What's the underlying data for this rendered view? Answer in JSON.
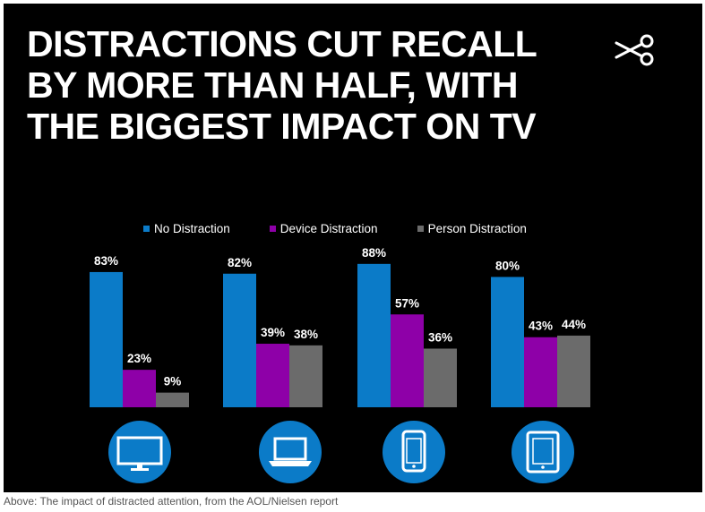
{
  "headline": {
    "lines": [
      "DISTRACTIONS CUT RECALL",
      "BY MORE THAN HALF, WITH",
      "THE BIGGEST IMPACT ON TV"
    ]
  },
  "caption": "Above: The impact of distracted attention, from the AOL/Nielsen report",
  "chart_data": {
    "type": "bar",
    "title": "DISTRACTIONS CUT RECALL BY MORE THAN HALF, WITH THE BIGGEST IMPACT ON TV",
    "categories": [
      "tv-icon",
      "laptop-icon",
      "smartphone-icon",
      "tablet-icon"
    ],
    "series": [
      {
        "name": "No Distraction",
        "color": "#0b7bc8",
        "values": [
          83,
          82,
          88,
          80
        ],
        "labels": [
          "83%",
          "82%",
          "88%",
          "80%"
        ]
      },
      {
        "name": "Device Distraction",
        "color": "#8e00a8",
        "values": [
          23,
          39,
          57,
          43
        ],
        "labels": [
          "23%",
          "39%",
          "57%",
          "43%"
        ]
      },
      {
        "name": "Person Distraction",
        "color": "#6b6b6b",
        "values": [
          9,
          38,
          36,
          44
        ],
        "labels": [
          "9%",
          "38%",
          "36%",
          "44%"
        ]
      }
    ],
    "ylim": [
      0,
      100
    ],
    "grid": false,
    "legend_position": "top",
    "icon_color": "#0b7bc8"
  }
}
